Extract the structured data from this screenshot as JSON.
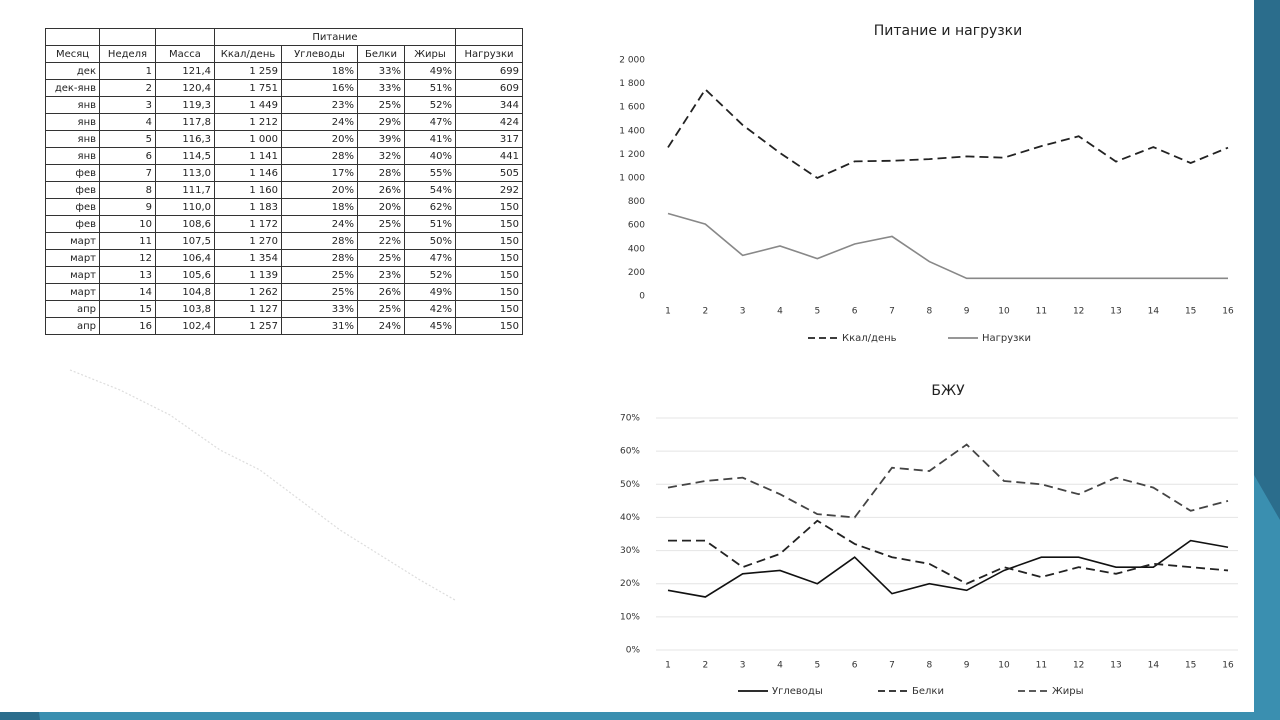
{
  "table": {
    "group_header": "Питание",
    "columns": [
      "Месяц",
      "Неделя",
      "Масса",
      "Ккал/день",
      "Углеводы",
      "Белки",
      "Жиры",
      "Нагрузки"
    ],
    "rows": [
      [
        "дек",
        "1",
        "121,4",
        "1 259",
        "18%",
        "33%",
        "49%",
        "699"
      ],
      [
        "дек-янв",
        "2",
        "120,4",
        "1 751",
        "16%",
        "33%",
        "51%",
        "609"
      ],
      [
        "янв",
        "3",
        "119,3",
        "1 449",
        "23%",
        "25%",
        "52%",
        "344"
      ],
      [
        "янв",
        "4",
        "117,8",
        "1 212",
        "24%",
        "29%",
        "47%",
        "424"
      ],
      [
        "янв",
        "5",
        "116,3",
        "1 000",
        "20%",
        "39%",
        "41%",
        "317"
      ],
      [
        "янв",
        "6",
        "114,5",
        "1 141",
        "28%",
        "32%",
        "40%",
        "441"
      ],
      [
        "фев",
        "7",
        "113,0",
        "1 146",
        "17%",
        "28%",
        "55%",
        "505"
      ],
      [
        "фев",
        "8",
        "111,7",
        "1 160",
        "20%",
        "26%",
        "54%",
        "292"
      ],
      [
        "фев",
        "9",
        "110,0",
        "1 183",
        "18%",
        "20%",
        "62%",
        "150"
      ],
      [
        "фев",
        "10",
        "108,6",
        "1 172",
        "24%",
        "25%",
        "51%",
        "150"
      ],
      [
        "март",
        "11",
        "107,5",
        "1 270",
        "28%",
        "22%",
        "50%",
        "150"
      ],
      [
        "март",
        "12",
        "106,4",
        "1 354",
        "28%",
        "25%",
        "47%",
        "150"
      ],
      [
        "март",
        "13",
        "105,6",
        "1 139",
        "25%",
        "23%",
        "52%",
        "150"
      ],
      [
        "март",
        "14",
        "104,8",
        "1 262",
        "25%",
        "26%",
        "49%",
        "150"
      ],
      [
        "апр",
        "15",
        "103,8",
        "1 127",
        "33%",
        "25%",
        "42%",
        "150"
      ],
      [
        "апр",
        "16",
        "102,4",
        "1 257",
        "31%",
        "24%",
        "45%",
        "150"
      ]
    ]
  },
  "chart_data": [
    {
      "type": "line",
      "title": "Питание и нагрузки",
      "categories": [
        1,
        2,
        3,
        4,
        5,
        6,
        7,
        8,
        9,
        10,
        11,
        12,
        13,
        14,
        15,
        16
      ],
      "series": [
        {
          "name": "Ккал/день",
          "color": "#222222",
          "dash": true,
          "values": [
            1259,
            1751,
            1449,
            1212,
            1000,
            1141,
            1146,
            1160,
            1183,
            1172,
            1270,
            1354,
            1139,
            1262,
            1127,
            1257
          ]
        },
        {
          "name": "Нагрузки",
          "color": "#888888",
          "dash": false,
          "values": [
            699,
            609,
            344,
            424,
            317,
            441,
            505,
            292,
            150,
            150,
            150,
            150,
            150,
            150,
            150,
            150
          ]
        }
      ],
      "ylim": [
        0,
        2000
      ],
      "yticks": [
        0,
        200,
        400,
        600,
        800,
        {
          "value": 1000,
          "label": "1 000"
        },
        {
          "value": 1200,
          "label": "1 200"
        },
        {
          "value": 1400,
          "label": "1 400"
        },
        {
          "value": 1600,
          "label": "1 600"
        },
        {
          "value": 1800,
          "label": "1 800"
        },
        {
          "value": 2000,
          "label": "2 000"
        }
      ],
      "grid": false,
      "legend": "bottom"
    },
    {
      "type": "line",
      "title": "БЖУ",
      "categories": [
        1,
        2,
        3,
        4,
        5,
        6,
        7,
        8,
        9,
        10,
        11,
        12,
        13,
        14,
        15,
        16
      ],
      "series": [
        {
          "name": "Углеводы",
          "color": "#111111",
          "dash": false,
          "values": [
            18,
            16,
            23,
            24,
            20,
            28,
            17,
            20,
            18,
            24,
            28,
            28,
            25,
            25,
            33,
            31
          ]
        },
        {
          "name": "Белки",
          "color": "#222222",
          "dash": true,
          "values": [
            33,
            33,
            25,
            29,
            39,
            32,
            28,
            26,
            20,
            25,
            22,
            25,
            23,
            26,
            25,
            24
          ]
        },
        {
          "name": "Жиры",
          "color": "#444444",
          "dash": true,
          "values": [
            49,
            51,
            52,
            47,
            41,
            40,
            55,
            54,
            62,
            51,
            50,
            47,
            52,
            49,
            42,
            45
          ]
        }
      ],
      "ylim": [
        0,
        70
      ],
      "yticks": [
        {
          "value": 0,
          "label": "0%"
        },
        {
          "value": 10,
          "label": "10%"
        },
        {
          "value": 20,
          "label": "20%"
        },
        {
          "value": 30,
          "label": "30%"
        },
        {
          "value": 40,
          "label": "40%"
        },
        {
          "value": 50,
          "label": "50%"
        },
        {
          "value": 60,
          "label": "60%"
        },
        {
          "value": 70,
          "label": "70%"
        }
      ],
      "grid": true,
      "legend": "bottom"
    }
  ]
}
